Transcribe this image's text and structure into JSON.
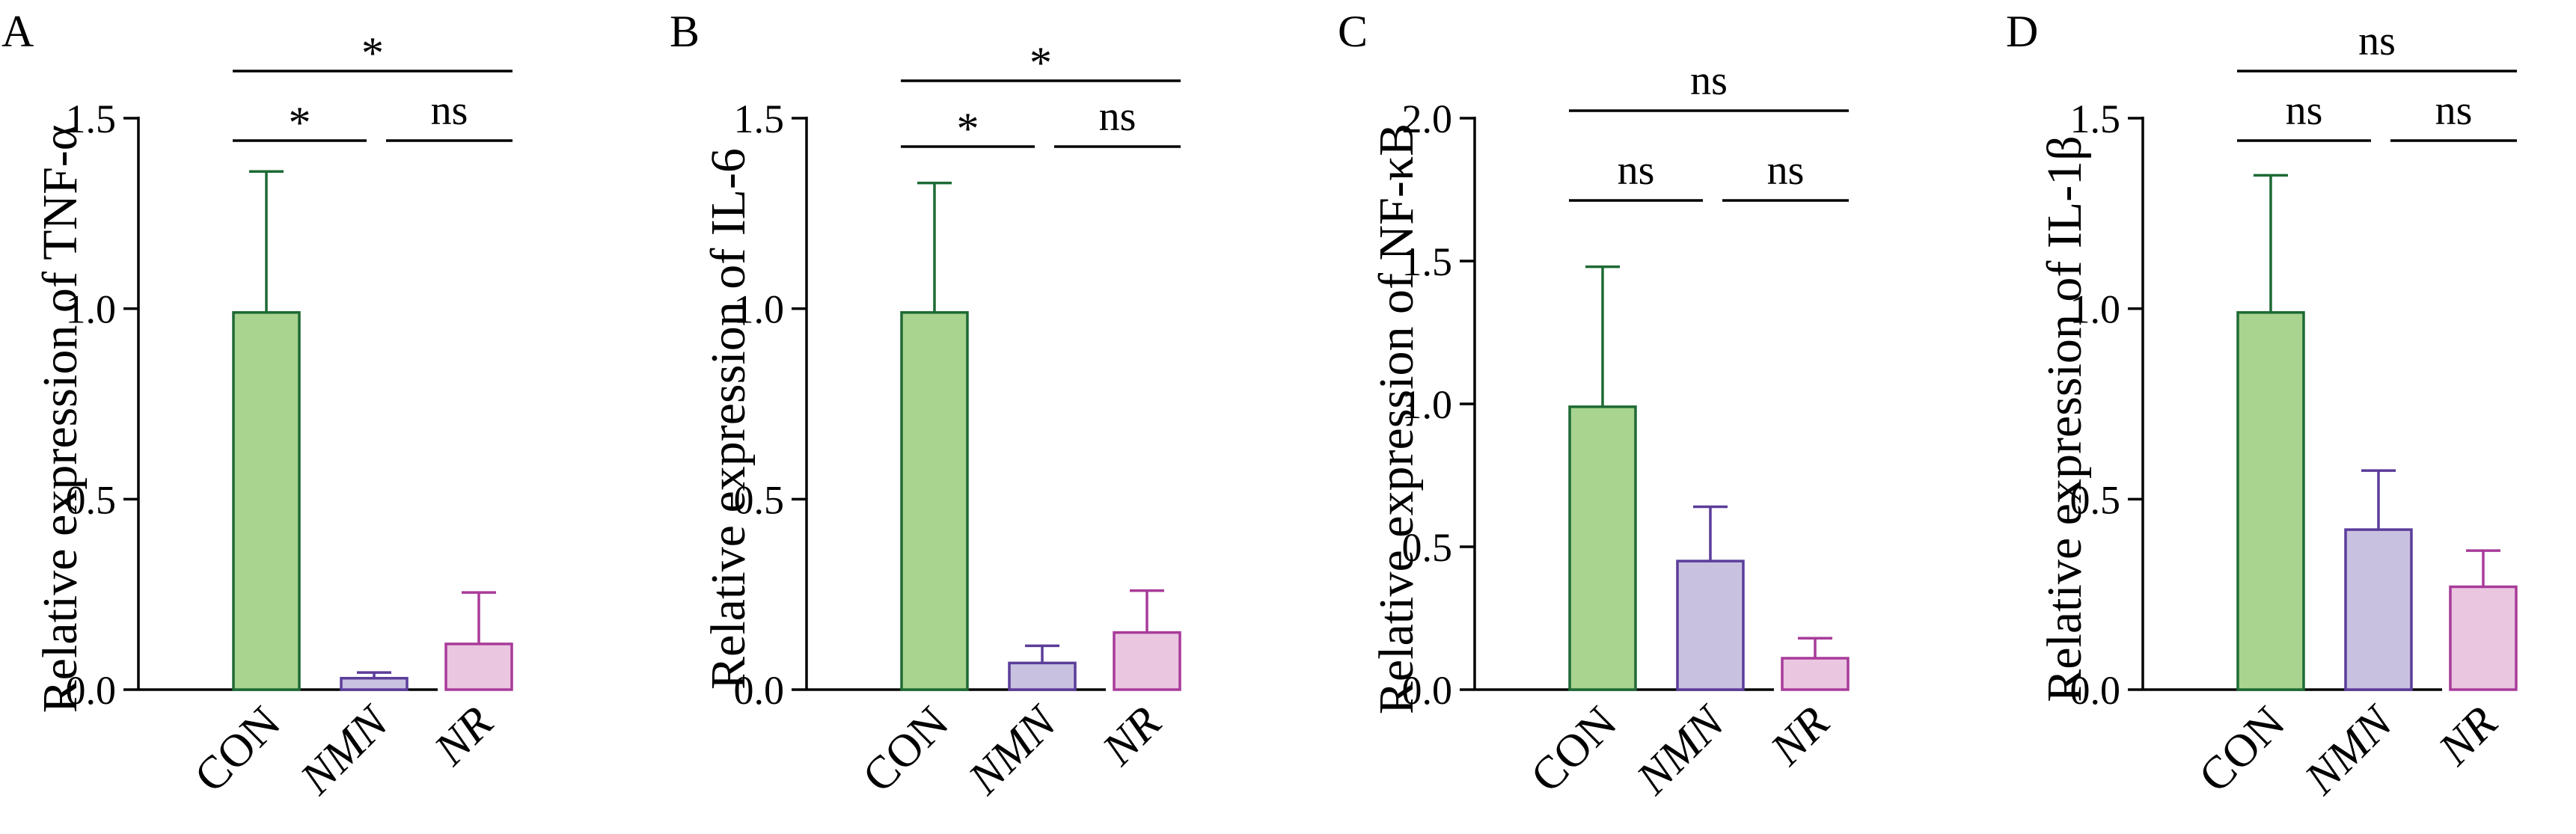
{
  "chart_data": [
    {
      "type": "bar",
      "panel": "A",
      "ylabel": "Relative expression of TNF-α",
      "categories": [
        "CON",
        "NMN",
        "NR"
      ],
      "values": [
        0.99,
        0.03,
        0.12
      ],
      "errors": [
        0.37,
        0.015,
        0.135
      ],
      "ylim": [
        0,
        1.5
      ],
      "yticks": [
        0.0,
        0.5,
        1.0,
        1.5
      ],
      "ytick_labels": [
        "0.0",
        "0.5",
        "1.0",
        "1.5"
      ],
      "significance": [
        {
          "from": 0,
          "to": 2,
          "label": "*"
        },
        {
          "from": 0,
          "to": 1,
          "label": "*"
        },
        {
          "from": 1,
          "to": 2,
          "label": "ns"
        }
      ]
    },
    {
      "type": "bar",
      "panel": "B",
      "ylabel": "Relative expression of IL-6",
      "categories": [
        "CON",
        "NMN",
        "NR"
      ],
      "values": [
        0.99,
        0.07,
        0.15
      ],
      "errors": [
        0.34,
        0.045,
        0.11
      ],
      "ylim": [
        0,
        1.5
      ],
      "yticks": [
        0.0,
        0.5,
        1.0,
        1.5
      ],
      "ytick_labels": [
        "0.0",
        "0.5",
        "1.0",
        "1.5"
      ],
      "significance": [
        {
          "from": 0,
          "to": 2,
          "label": "*"
        },
        {
          "from": 0,
          "to": 1,
          "label": "*"
        },
        {
          "from": 1,
          "to": 2,
          "label": "ns"
        }
      ]
    },
    {
      "type": "bar",
      "panel": "C",
      "ylabel": "Relative expression of NF-κB",
      "categories": [
        "CON",
        "NMN",
        "NR"
      ],
      "values": [
        0.99,
        0.45,
        0.11
      ],
      "errors": [
        0.49,
        0.19,
        0.07
      ],
      "ylim": [
        0,
        2.0
      ],
      "yticks": [
        0.0,
        0.5,
        1.0,
        1.5,
        2.0
      ],
      "ytick_labels": [
        "0.0",
        "0.5",
        "1.0",
        "1.5",
        "2.0"
      ],
      "significance": [
        {
          "from": 0,
          "to": 2,
          "label": "ns"
        },
        {
          "from": 0,
          "to": 1,
          "label": "ns"
        },
        {
          "from": 1,
          "to": 2,
          "label": "ns"
        }
      ]
    },
    {
      "type": "bar",
      "panel": "D",
      "ylabel": "Relative expression of IL-1β",
      "categories": [
        "CON",
        "NMN",
        "NR"
      ],
      "values": [
        0.99,
        0.42,
        0.27
      ],
      "errors": [
        0.36,
        0.155,
        0.095
      ],
      "ylim": [
        0,
        1.5
      ],
      "yticks": [
        0.0,
        0.5,
        1.0,
        1.5
      ],
      "ytick_labels": [
        "0.0",
        "0.5",
        "1.0",
        "1.5"
      ],
      "significance": [
        {
          "from": 0,
          "to": 2,
          "label": "ns"
        },
        {
          "from": 0,
          "to": 1,
          "label": "ns"
        },
        {
          "from": 1,
          "to": 2,
          "label": "ns"
        }
      ]
    }
  ],
  "colors": {
    "CON": {
      "fill": "#a8d490",
      "stroke": "#1e6a34"
    },
    "NMN": {
      "fill": "#c9c1e0",
      "stroke": "#5b3d9a"
    },
    "NR": {
      "fill": "#ebc6e0",
      "stroke": "#a83b9a"
    }
  }
}
